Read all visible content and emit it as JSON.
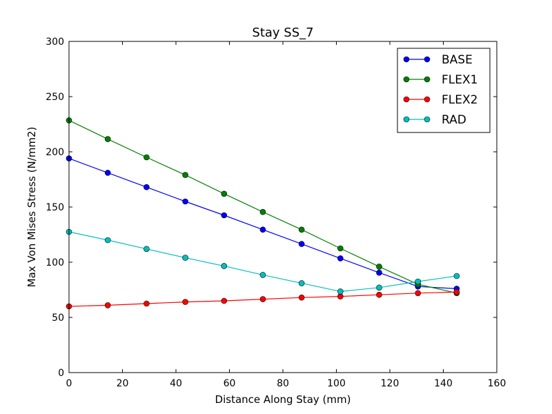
{
  "chart_data": {
    "type": "line",
    "title": "Stay SS_7",
    "xlabel": "Distance Along Stay (mm)",
    "ylabel": "Max Von Mises Stress (N/mm2)",
    "xlim": [
      0,
      160
    ],
    "ylim": [
      0,
      300
    ],
    "xticks": [
      "0",
      "20",
      "40",
      "60",
      "80",
      "100",
      "120",
      "140",
      "160"
    ],
    "yticks": [
      "0",
      "50",
      "100",
      "150",
      "200",
      "250",
      "300"
    ],
    "grid": false,
    "legend_position": "top-right",
    "x": [
      0,
      14.5,
      29,
      43.5,
      58,
      72.5,
      87,
      101.5,
      116,
      130.5,
      145
    ],
    "series": [
      {
        "name": "BASE",
        "color": "#0000ff",
        "values": [
          194,
          181,
          168,
          155,
          142.5,
          129.5,
          116.5,
          103.5,
          90.5,
          78,
          76
        ]
      },
      {
        "name": "FLEX1",
        "color": "#008000",
        "values": [
          228.5,
          211.5,
          195,
          179,
          162,
          145.5,
          129.5,
          112.5,
          96,
          80,
          72
        ]
      },
      {
        "name": "FLEX2",
        "color": "#ff0000",
        "values": [
          60,
          61,
          62.5,
          64,
          65,
          66.5,
          68,
          69,
          70.5,
          72,
          73
        ]
      },
      {
        "name": "RAD",
        "color": "#00bfbf",
        "values": [
          127.5,
          120,
          112,
          104,
          96.5,
          88.5,
          81,
          73.5,
          77,
          82.5,
          87.5
        ]
      }
    ]
  }
}
